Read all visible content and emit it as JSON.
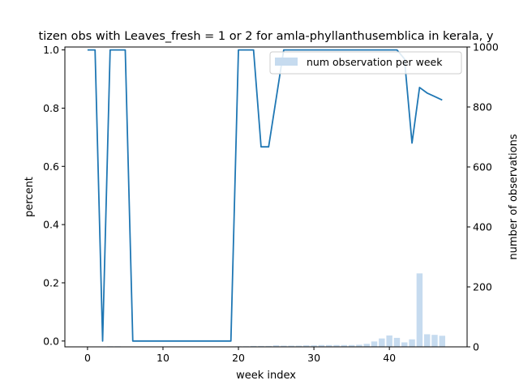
{
  "chart_data": {
    "type": "line",
    "title": "tizen obs with Leaves_fresh = 1 or 2 for amla-phyllanthusemblica in kerala, y",
    "xlabel": "week index",
    "ylabel": "percent",
    "y2label": "number of observations",
    "xlim": [
      -3.0,
      50.3
    ],
    "ylim": [
      -0.02,
      1.01
    ],
    "y2lim": [
      0,
      1000
    ],
    "xticks": [
      0,
      10,
      20,
      30,
      40
    ],
    "yticks": [
      0.0,
      0.2,
      0.4,
      0.6,
      0.8,
      1.0
    ],
    "yticklabels": [
      "0.0",
      "0.2",
      "0.4",
      "0.6",
      "0.8",
      "1.0"
    ],
    "y2ticks": [
      0,
      200,
      400,
      600,
      800,
      1000
    ],
    "grid": false,
    "legend": {
      "placement": "top-right",
      "entries": [
        "num observation per week"
      ]
    },
    "line_color": "#1f77b4",
    "bar_color": "#c6dbef",
    "series": [
      {
        "kind": "line",
        "x": [
          0,
          1,
          2,
          3,
          4,
          5,
          6,
          7,
          8,
          9,
          10,
          11,
          12,
          13,
          14,
          15,
          16,
          17,
          18,
          19,
          20,
          21,
          22,
          23,
          24,
          25,
          26,
          27,
          28,
          29,
          30,
          31,
          32,
          33,
          34,
          35,
          36,
          37,
          38,
          39,
          40,
          41,
          42,
          43,
          44,
          45,
          46,
          47
        ],
        "values": [
          1.0,
          1.0,
          0.0,
          1.0,
          1.0,
          1.0,
          0.0,
          0.0,
          0.0,
          0.0,
          0.0,
          0.0,
          0.0,
          0.0,
          0.0,
          0.0,
          0.0,
          0.0,
          0.0,
          0.0,
          1.0,
          1.0,
          1.0,
          0.667,
          0.667,
          0.833,
          1.0,
          1.0,
          1.0,
          1.0,
          1.0,
          1.0,
          1.0,
          1.0,
          1.0,
          1.0,
          1.0,
          1.0,
          1.0,
          1.0,
          1.0,
          1.0,
          0.969,
          0.68,
          0.871,
          0.852,
          0.84,
          0.828
        ]
      },
      {
        "kind": "bar",
        "name": "num observation per week",
        "x": [
          0,
          1,
          2,
          3,
          4,
          5,
          6,
          7,
          8,
          9,
          10,
          11,
          12,
          13,
          14,
          15,
          16,
          17,
          18,
          19,
          20,
          21,
          22,
          23,
          24,
          25,
          26,
          27,
          28,
          29,
          30,
          31,
          32,
          33,
          34,
          35,
          36,
          37,
          38,
          39,
          40,
          41,
          42,
          43,
          44,
          45,
          46,
          47
        ],
        "values": [
          1,
          1,
          1,
          2,
          2,
          1,
          1,
          1,
          1,
          1,
          1,
          1,
          1,
          1,
          1,
          1,
          1,
          1,
          1,
          1,
          2,
          2,
          3,
          3,
          3,
          5,
          4,
          4,
          4,
          5,
          5,
          6,
          6,
          6,
          6,
          6,
          7,
          10,
          18,
          28,
          38,
          30,
          15,
          25,
          245,
          42,
          40,
          37
        ]
      }
    ]
  }
}
